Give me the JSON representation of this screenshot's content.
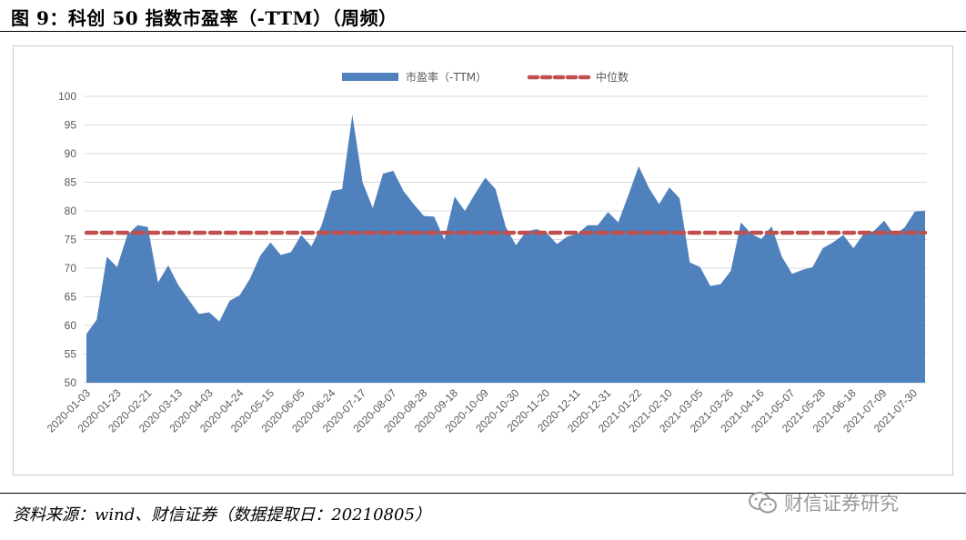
{
  "title": "图 9：科创 50 指数市盈率（-TTM）（周频）",
  "source": "资料来源：wind、财信证券（数据提取日：20210805）",
  "watermark": {
    "text": "财信证券研究",
    "icon": "wechat-icon"
  },
  "chart_data": {
    "type": "area",
    "ylim": [
      50,
      100
    ],
    "yticks": [
      50,
      55,
      60,
      65,
      70,
      75,
      80,
      85,
      90,
      95,
      100
    ],
    "grid": true,
    "legend_position": "top-center",
    "colors": {
      "area": "#4F81BD",
      "median": "#C0504D",
      "grid": "#D9D9D9",
      "axis_text": "#595959"
    },
    "xtick_labels": [
      "2020-01-03",
      "2020-01-23",
      "2020-02-21",
      "2020-03-13",
      "2020-04-03",
      "2020-04-24",
      "2020-05-15",
      "2020-06-05",
      "2020-06-24",
      "2020-07-17",
      "2020-08-07",
      "2020-08-28",
      "2020-09-18",
      "2020-10-09",
      "2020-10-30",
      "2020-11-20",
      "2020-12-11",
      "2020-12-31",
      "2021-01-22",
      "2021-02-10",
      "2021-03-05",
      "2021-03-26",
      "2021-04-16",
      "2021-05-07",
      "2021-05-28",
      "2021-06-18",
      "2021-07-09",
      "2021-07-30"
    ],
    "series": [
      {
        "name": "市盈率（-TTM）",
        "style": "area",
        "values": [
          58.5,
          61.0,
          72.0,
          70.2,
          75.8,
          77.5,
          77.2,
          67.5,
          70.5,
          67.0,
          64.5,
          62.0,
          62.3,
          60.7,
          64.3,
          65.3,
          68.2,
          72.2,
          74.5,
          72.3,
          72.8,
          75.8,
          73.8,
          77.5,
          83.5,
          83.8,
          96.8,
          85.0,
          80.5,
          86.5,
          87.0,
          83.5,
          81.2,
          79.1,
          79.0,
          75.0,
          82.5,
          80.0,
          83.0,
          85.8,
          83.8,
          77.2,
          74.0,
          76.4,
          76.8,
          76.2,
          74.2,
          75.5,
          76.0,
          77.5,
          77.5,
          79.8,
          78.0,
          82.8,
          87.8,
          84.0,
          81.2,
          84.1,
          82.2,
          71.0,
          70.2,
          66.9,
          67.2,
          69.5,
          78.0,
          76.0,
          75.1,
          77.3,
          72.0,
          69.0,
          69.7,
          70.2,
          73.5,
          74.5,
          75.8,
          73.5,
          76.0,
          76.5,
          78.3,
          75.8,
          77.1,
          79.9,
          80.0
        ]
      },
      {
        "name": "中位数",
        "style": "dashed-line",
        "value": 76.2
      }
    ]
  }
}
